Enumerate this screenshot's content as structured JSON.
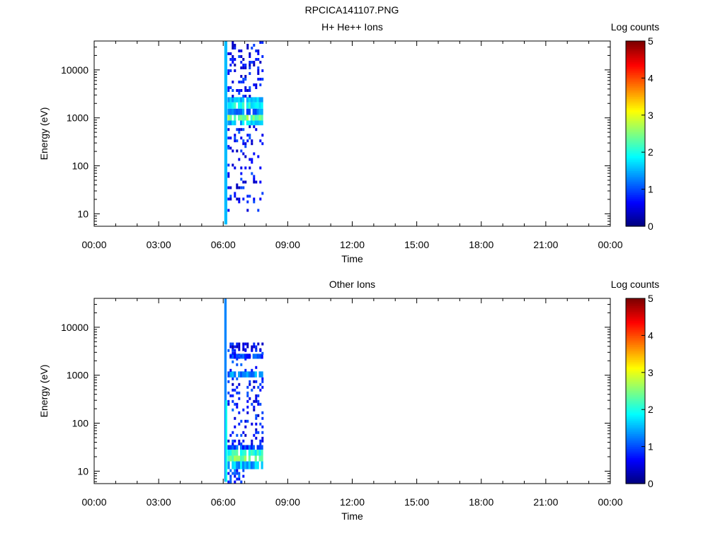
{
  "figure_title": "RPCICA141107.PNG",
  "chart_data": [
    {
      "type": "heatmap",
      "title": "H+ He++ Ions",
      "xlabel": "Time",
      "ylabel": "Energy (eV)",
      "x_ticks": [
        "00:00",
        "03:00",
        "06:00",
        "09:00",
        "12:00",
        "15:00",
        "18:00",
        "21:00",
        "00:00"
      ],
      "xlim_hours": [
        0,
        24
      ],
      "y_scale": "log",
      "ylim": [
        5.5,
        40000
      ],
      "y_ticks": [
        {
          "value": 10,
          "label": "10"
        },
        {
          "value": 100,
          "label": "100"
        },
        {
          "value": 1000,
          "label": "1000"
        },
        {
          "value": 10000,
          "label": "10000"
        }
      ],
      "colorbar": {
        "label": "Log counts",
        "min": 0,
        "max": 5,
        "ticks": [
          "0",
          "1",
          "2",
          "3",
          "4",
          "5"
        ],
        "colormap": "jet"
      },
      "data_time_range_hours": [
        6.05,
        7.85
      ],
      "bands": [
        {
          "t0": 6.05,
          "t1": 6.18,
          "e0": 6,
          "e1": 40000,
          "level": 1.9
        },
        {
          "t0": 6.2,
          "t1": 7.85,
          "e0": 2100,
          "e1": 2700,
          "level": 1.5
        },
        {
          "t0": 6.2,
          "t1": 7.85,
          "e0": 1550,
          "e1": 2100,
          "level": 1.9
        },
        {
          "t0": 6.2,
          "t1": 7.85,
          "e0": 1150,
          "e1": 1550,
          "level": 1.2
        },
        {
          "t0": 6.2,
          "t1": 7.85,
          "e0": 880,
          "e1": 1150,
          "level": 2.5
        },
        {
          "t0": 6.2,
          "t1": 7.85,
          "e0": 700,
          "e1": 880,
          "level": 1.6
        }
      ],
      "scatter_regions": [
        {
          "t0": 6.2,
          "t1": 7.85,
          "e0": 2700,
          "e1": 40000,
          "density": 0.28,
          "level": 0.5
        },
        {
          "t0": 6.2,
          "t1": 7.85,
          "e0": 250,
          "e1": 700,
          "density": 0.22,
          "level": 0.55
        },
        {
          "t0": 6.2,
          "t1": 7.85,
          "e0": 12,
          "e1": 250,
          "density": 0.12,
          "level": 0.5
        }
      ]
    },
    {
      "type": "heatmap",
      "title": "Other Ions",
      "xlabel": "Time",
      "ylabel": "Energy (eV)",
      "x_ticks": [
        "00:00",
        "03:00",
        "06:00",
        "09:00",
        "12:00",
        "15:00",
        "18:00",
        "21:00",
        "00:00"
      ],
      "xlim_hours": [
        0,
        24
      ],
      "y_scale": "log",
      "ylim": [
        5.5,
        40000
      ],
      "y_ticks": [
        {
          "value": 10,
          "label": "10"
        },
        {
          "value": 100,
          "label": "100"
        },
        {
          "value": 1000,
          "label": "1000"
        },
        {
          "value": 10000,
          "label": "10000"
        }
      ],
      "colorbar": {
        "label": "Log counts",
        "min": 0,
        "max": 5,
        "ticks": [
          "0",
          "1",
          "2",
          "3",
          "4",
          "5"
        ],
        "colormap": "jet"
      },
      "data_time_range_hours": [
        6.05,
        7.85
      ],
      "bands": [
        {
          "t0": 6.05,
          "t1": 6.15,
          "e0": 6,
          "e1": 40000,
          "level": 1.2
        },
        {
          "t0": 6.1,
          "t1": 6.18,
          "e0": 6,
          "e1": 300,
          "level": 1.9
        },
        {
          "t0": 6.2,
          "t1": 7.85,
          "e0": 28,
          "e1": 35,
          "level": 1.0
        },
        {
          "t0": 6.2,
          "t1": 7.85,
          "e0": 21,
          "e1": 28,
          "level": 2.0
        },
        {
          "t0": 6.2,
          "t1": 7.85,
          "e0": 16,
          "e1": 21,
          "level": 2.4
        },
        {
          "t0": 6.2,
          "t1": 7.85,
          "e0": 11,
          "e1": 16,
          "level": 1.5
        },
        {
          "t0": 6.2,
          "t1": 7.85,
          "e0": 900,
          "e1": 1200,
          "level": 1.3
        },
        {
          "t0": 6.2,
          "t1": 7.85,
          "e0": 2200,
          "e1": 2800,
          "level": 0.9
        }
      ],
      "scatter_regions": [
        {
          "t0": 6.2,
          "t1": 7.85,
          "e0": 3500,
          "e1": 4800,
          "density": 0.45,
          "level": 0.4
        },
        {
          "t0": 6.2,
          "t1": 7.85,
          "e0": 1200,
          "e1": 3500,
          "density": 0.2,
          "level": 0.6
        },
        {
          "t0": 6.2,
          "t1": 7.85,
          "e0": 35,
          "e1": 900,
          "density": 0.22,
          "level": 0.55
        },
        {
          "t0": 6.2,
          "t1": 6.9,
          "e0": 6,
          "e1": 11,
          "density": 0.45,
          "level": 0.8
        }
      ]
    }
  ]
}
